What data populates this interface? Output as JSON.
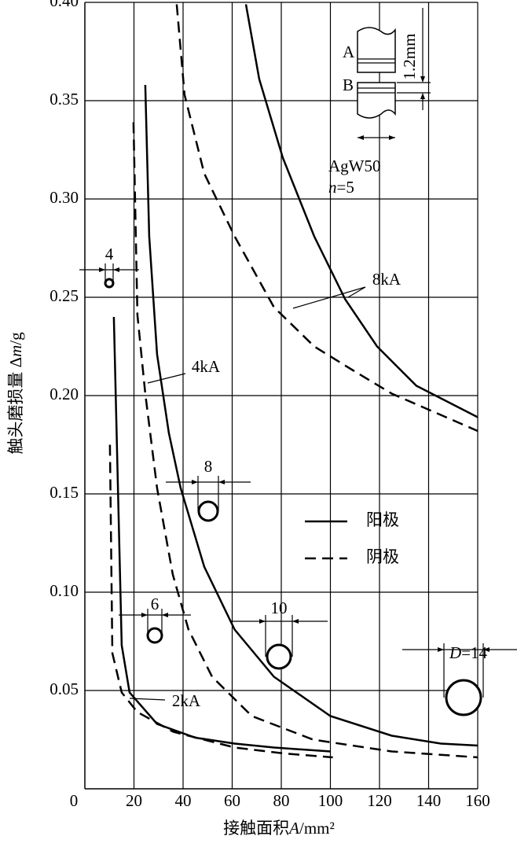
{
  "chart_data": {
    "type": "line",
    "xlabel": [
      "接触面积",
      "A",
      "/mm²"
    ],
    "ylabel": [
      "触头磨损量 Δ",
      "m",
      "/g"
    ],
    "xlim": [
      0,
      160
    ],
    "ylim": [
      0,
      0.4
    ],
    "xticks": [
      0,
      20,
      40,
      60,
      80,
      100,
      120,
      140,
      160
    ],
    "yticks": [
      {
        "value": 0.05,
        "label": "0.05"
      },
      {
        "value": 0.1,
        "label": "0.10"
      },
      {
        "value": 0.15,
        "label": "0.15"
      },
      {
        "value": 0.2,
        "label": "0.20"
      },
      {
        "value": 0.25,
        "label": "0.25"
      },
      {
        "value": 0.3,
        "label": "0.30"
      },
      {
        "value": 0.35,
        "label": "0.35"
      },
      {
        "value": 0.4,
        "label": "0.40"
      }
    ],
    "grid": true,
    "color": "#000000",
    "legend": [
      {
        "name": "阳极",
        "style": "solid"
      },
      {
        "name": "阴极",
        "style": "dashed"
      }
    ],
    "series": [
      {
        "style": "solid",
        "x": [
          11.8,
          15,
          18.2,
          29.4,
          45,
          61,
          77,
          100
        ],
        "values": [
          0.24,
          0.073,
          0.049,
          0.033,
          0.026,
          0.023,
          0.021,
          0.019
        ]
      },
      {
        "style": "dashed",
        "x": [
          10.2,
          11.2,
          15,
          21.4,
          36,
          61,
          81,
          101
        ],
        "values": [
          0.175,
          0.069,
          0.049,
          0.039,
          0.029,
          0.021,
          0.018,
          0.016
        ]
      },
      {
        "style": "solid",
        "x": [
          24.6,
          26.2,
          29.4,
          34.2,
          39,
          48.6,
          61,
          77,
          100,
          125,
          145,
          160
        ],
        "values": [
          0.358,
          0.281,
          0.221,
          0.181,
          0.153,
          0.113,
          0.081,
          0.057,
          0.037,
          0.027,
          0.023,
          0.022
        ]
      },
      {
        "style": "dashed",
        "x": [
          19.8,
          21.4,
          24.6,
          29.4,
          35.8,
          42.2,
          51.8,
          68,
          93,
          125,
          160
        ],
        "values": [
          0.339,
          0.241,
          0.201,
          0.153,
          0.109,
          0.081,
          0.057,
          0.037,
          0.025,
          0.019,
          0.016
        ]
      },
      {
        "style": "solid",
        "x": [
          65.6,
          71,
          80.6,
          93.4,
          106,
          119,
          135,
          160
        ],
        "values": [
          0.399,
          0.361,
          0.321,
          0.281,
          0.249,
          0.225,
          0.205,
          0.189
        ]
      },
      {
        "style": "dashed",
        "x": [
          37.4,
          40.6,
          48.6,
          61,
          77,
          93.4,
          109,
          125,
          160
        ],
        "values": [
          0.399,
          0.353,
          0.313,
          0.281,
          0.245,
          0.225,
          0.213,
          0.201,
          0.182
        ]
      }
    ],
    "annotations": [
      "2kA",
      "4kA",
      "8kA"
    ],
    "contacts": [
      [
        "4"
      ],
      [
        "6"
      ],
      [
        "8"
      ],
      [
        "10"
      ],
      [
        "D",
        "=14"
      ]
    ],
    "inset": {
      "a": "A",
      "b": "B",
      "dim": "1.2mm",
      "material": "AgW50",
      "n": [
        "n",
        "=5"
      ]
    }
  }
}
